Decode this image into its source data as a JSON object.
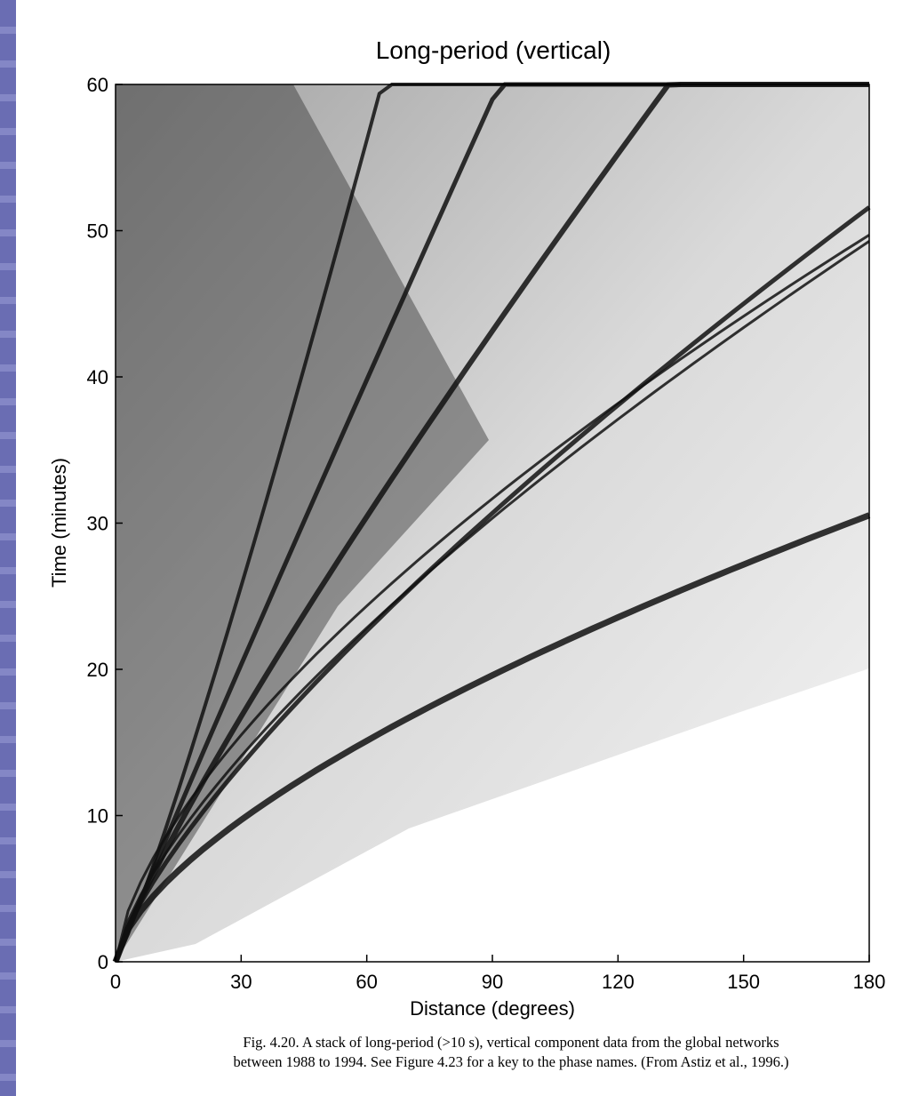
{
  "chart_data": {
    "type": "image",
    "title": "Long-period (vertical)",
    "x_label": "Distance (degrees)",
    "y_label": "Time (minutes)",
    "xlim": [
      0,
      180
    ],
    "ylim": [
      0,
      60
    ],
    "xticks": [
      0,
      30,
      60,
      90,
      120,
      150,
      180
    ],
    "yticks": [
      0,
      10,
      20,
      30,
      40,
      50,
      60
    ],
    "caption": [
      "Fig. 4.20.  A stack of long-period (>10 s), vertical component data from the global networks",
      "between 1988 to 1994. See Figure 4.23 for a key to the phase names. (From Astiz et al., 1996.)"
    ]
  }
}
